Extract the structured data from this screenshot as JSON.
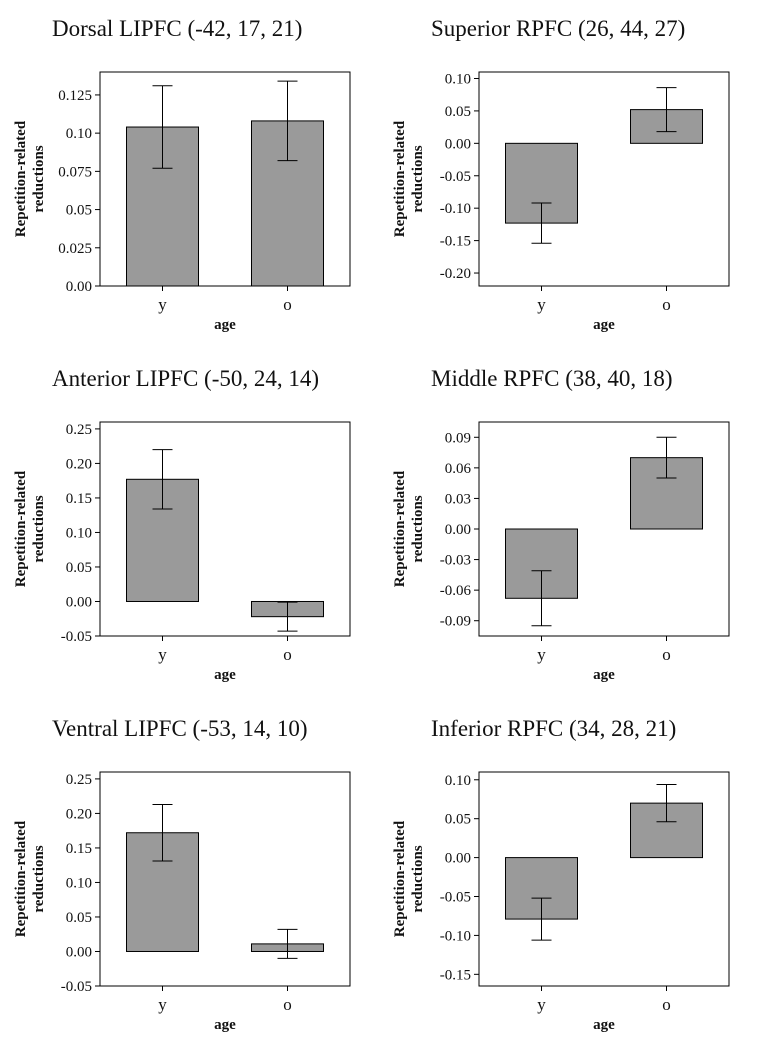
{
  "colors": {
    "bar_fill": "#9a9a9a",
    "bar_stroke": "#000000",
    "frame": "#000000"
  },
  "chart_data": [
    {
      "type": "bar",
      "panel": "A",
      "title": "Dorsal LIPFC (-42, 17, 21)",
      "xlabel": "age",
      "ylabel": [
        "Repetition-related",
        "reductions"
      ],
      "categories": [
        "y",
        "o"
      ],
      "values": [
        0.104,
        0.108
      ],
      "errors": [
        0.027,
        0.026
      ],
      "ylim": [
        0.0,
        0.14
      ],
      "yticks": [
        0.0,
        0.025,
        0.05,
        0.075,
        0.1,
        0.125
      ],
      "ytick_labels": [
        "0.00",
        "0.025",
        "0.05",
        "0.075",
        "0.10",
        "0.125"
      ],
      "grid": false
    },
    {
      "type": "bar",
      "panel": "B",
      "title": "Anterior LIPFC (-50, 24, 14)",
      "xlabel": "age",
      "ylabel": [
        "Repetition-related",
        "reductions"
      ],
      "categories": [
        "y",
        "o"
      ],
      "values": [
        0.177,
        -0.022
      ],
      "errors": [
        0.043,
        0.021
      ],
      "ylim": [
        -0.05,
        0.26
      ],
      "yticks": [
        -0.05,
        0.0,
        0.05,
        0.1,
        0.15,
        0.2,
        0.25
      ],
      "ytick_labels": [
        "-0.05",
        "0.00",
        "0.05",
        "0.10",
        "0.15",
        "0.20",
        "0.25"
      ],
      "grid": false
    },
    {
      "type": "bar",
      "panel": "C",
      "title": "Ventral LIPFC (-53, 14, 10)",
      "xlabel": "age",
      "ylabel": [
        "Repetition-related",
        "reductions"
      ],
      "categories": [
        "y",
        "o"
      ],
      "values": [
        0.172,
        0.011
      ],
      "errors": [
        0.041,
        0.021
      ],
      "ylim": [
        -0.05,
        0.26
      ],
      "yticks": [
        -0.05,
        0.0,
        0.05,
        0.1,
        0.15,
        0.2,
        0.25
      ],
      "ytick_labels": [
        "-0.05",
        "0.00",
        "0.05",
        "0.10",
        "0.15",
        "0.20",
        "0.25"
      ],
      "grid": false
    },
    {
      "type": "bar",
      "panel": "D",
      "title": "Superior RPFC (26, 44, 27)",
      "xlabel": "age",
      "ylabel": [
        "Repetition-related",
        "reductions"
      ],
      "categories": [
        "y",
        "o"
      ],
      "values": [
        -0.123,
        0.052
      ],
      "errors": [
        0.031,
        0.034
      ],
      "ylim": [
        -0.22,
        0.11
      ],
      "yticks": [
        -0.2,
        -0.15,
        -0.1,
        -0.05,
        0.0,
        0.05,
        0.1
      ],
      "ytick_labels": [
        "-0.20",
        "-0.15",
        "-0.10",
        "-0.05",
        "0.00",
        "0.05",
        "0.10"
      ],
      "grid": false
    },
    {
      "type": "bar",
      "panel": "E",
      "title": "Middle RPFC (38, 40, 18)",
      "xlabel": "age",
      "ylabel": [
        "Repetition-related",
        "reductions"
      ],
      "categories": [
        "y",
        "o"
      ],
      "values": [
        -0.068,
        0.07
      ],
      "errors": [
        0.027,
        0.02
      ],
      "ylim": [
        -0.105,
        0.105
      ],
      "yticks": [
        -0.09,
        -0.06,
        -0.03,
        0.0,
        0.03,
        0.06,
        0.09
      ],
      "ytick_labels": [
        "-0.09",
        "-0.06",
        "-0.03",
        "0.00",
        "0.03",
        "0.06",
        "0.09"
      ],
      "grid": false
    },
    {
      "type": "bar",
      "panel": "F",
      "title": "Inferior RPFC (34, 28, 21)",
      "xlabel": "age",
      "ylabel": [
        "Repetition-related",
        "reductions"
      ],
      "categories": [
        "y",
        "o"
      ],
      "values": [
        -0.079,
        0.07
      ],
      "errors": [
        0.027,
        0.024
      ],
      "ylim": [
        -0.165,
        0.11
      ],
      "yticks": [
        -0.15,
        -0.1,
        -0.05,
        0.0,
        0.05,
        0.1
      ],
      "ytick_labels": [
        "-0.15",
        "-0.10",
        "-0.05",
        "0.00",
        "0.05",
        "0.10"
      ],
      "grid": false
    }
  ]
}
